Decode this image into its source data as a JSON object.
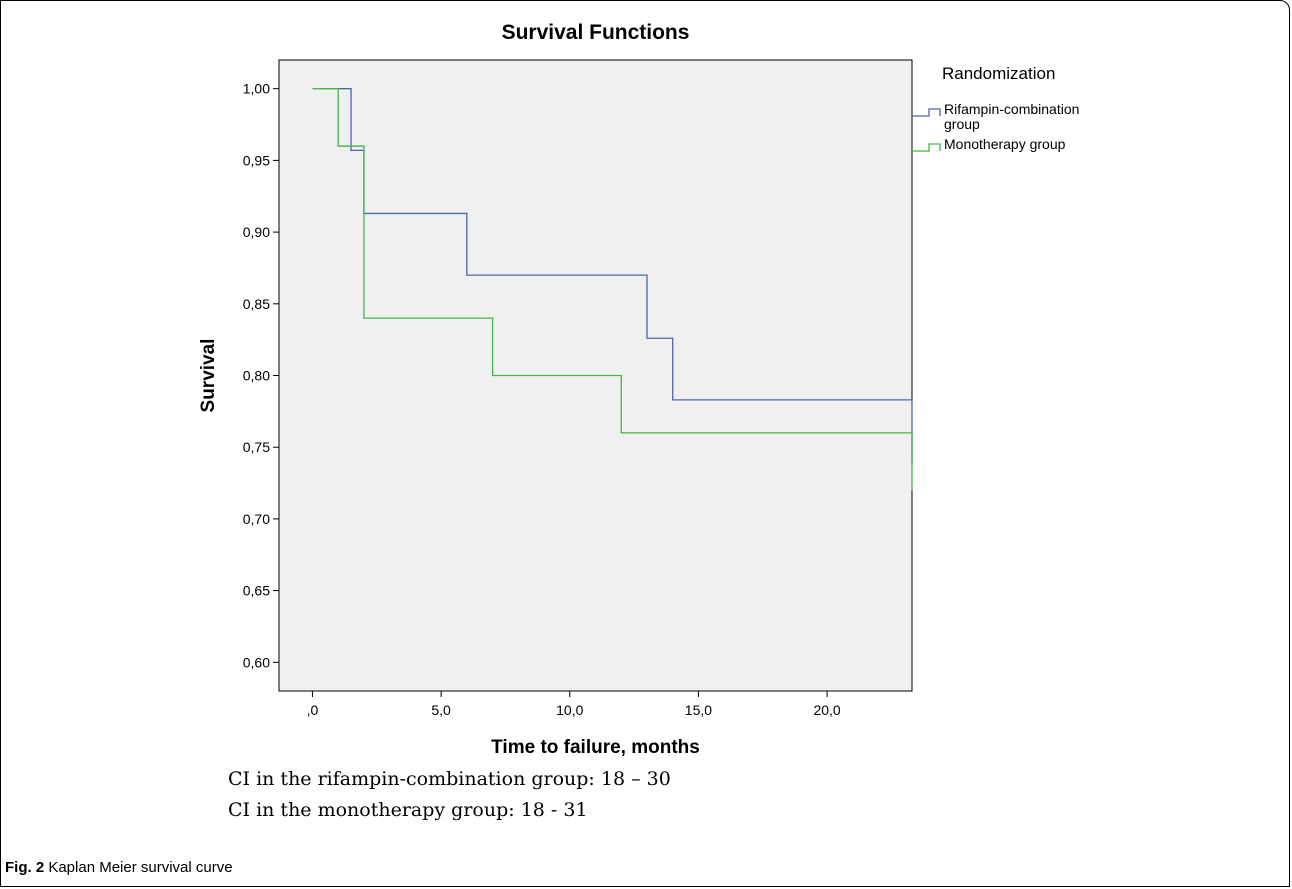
{
  "chart_data": {
    "type": "line",
    "subtype": "step",
    "title": "Survival Functions",
    "xlabel": "Time to failure, months",
    "ylabel": "Survival",
    "xlim": [
      -1.3,
      23.3
    ],
    "ylim": [
      0.58,
      1.02
    ],
    "x_ticks": [
      0,
      5,
      10,
      15,
      20
    ],
    "x_tick_labels": [
      ",0",
      "5,0",
      "10,0",
      "15,0",
      "20,0"
    ],
    "y_ticks": [
      0.6,
      0.65,
      0.7,
      0.75,
      0.8,
      0.85,
      0.9,
      0.95,
      1.0
    ],
    "y_tick_labels": [
      "0,60",
      "0,65",
      "0,70",
      "0,75",
      "0,80",
      "0,85",
      "0,90",
      "0,95",
      "1,00"
    ],
    "grid": false,
    "plot_background": "#f0f0f0",
    "legend": {
      "title": "Randomization",
      "position": "right-top"
    },
    "series": [
      {
        "name": "Rifampin-combination group",
        "legend_lines": [
          "Rifampin-combination",
          "group"
        ],
        "color": "#5064b4",
        "points": [
          [
            1.0,
            1.0
          ],
          [
            1.5,
            0.957
          ],
          [
            2.0,
            0.913
          ],
          [
            6.0,
            0.87
          ],
          [
            13.0,
            0.826
          ],
          [
            14.0,
            0.783
          ],
          [
            23.3,
            0.739
          ]
        ]
      },
      {
        "name": "Monotherapy group",
        "legend_lines": [
          "Monotherapy group"
        ],
        "color": "#46b446",
        "points": [
          [
            0.0,
            1.0
          ],
          [
            0.5,
            1.0
          ],
          [
            1.0,
            0.96
          ],
          [
            2.0,
            0.84
          ],
          [
            7.0,
            0.8
          ],
          [
            12.0,
            0.76
          ],
          [
            23.3,
            0.72
          ]
        ]
      }
    ]
  },
  "notes": {
    "line1": "CI in the rifampin-combination group: 18 – 30",
    "line2": "CI in the monotherapy group: 18 - 31"
  },
  "caption": {
    "label": "Fig. 2",
    "text": " Kaplan Meier survival curve"
  }
}
